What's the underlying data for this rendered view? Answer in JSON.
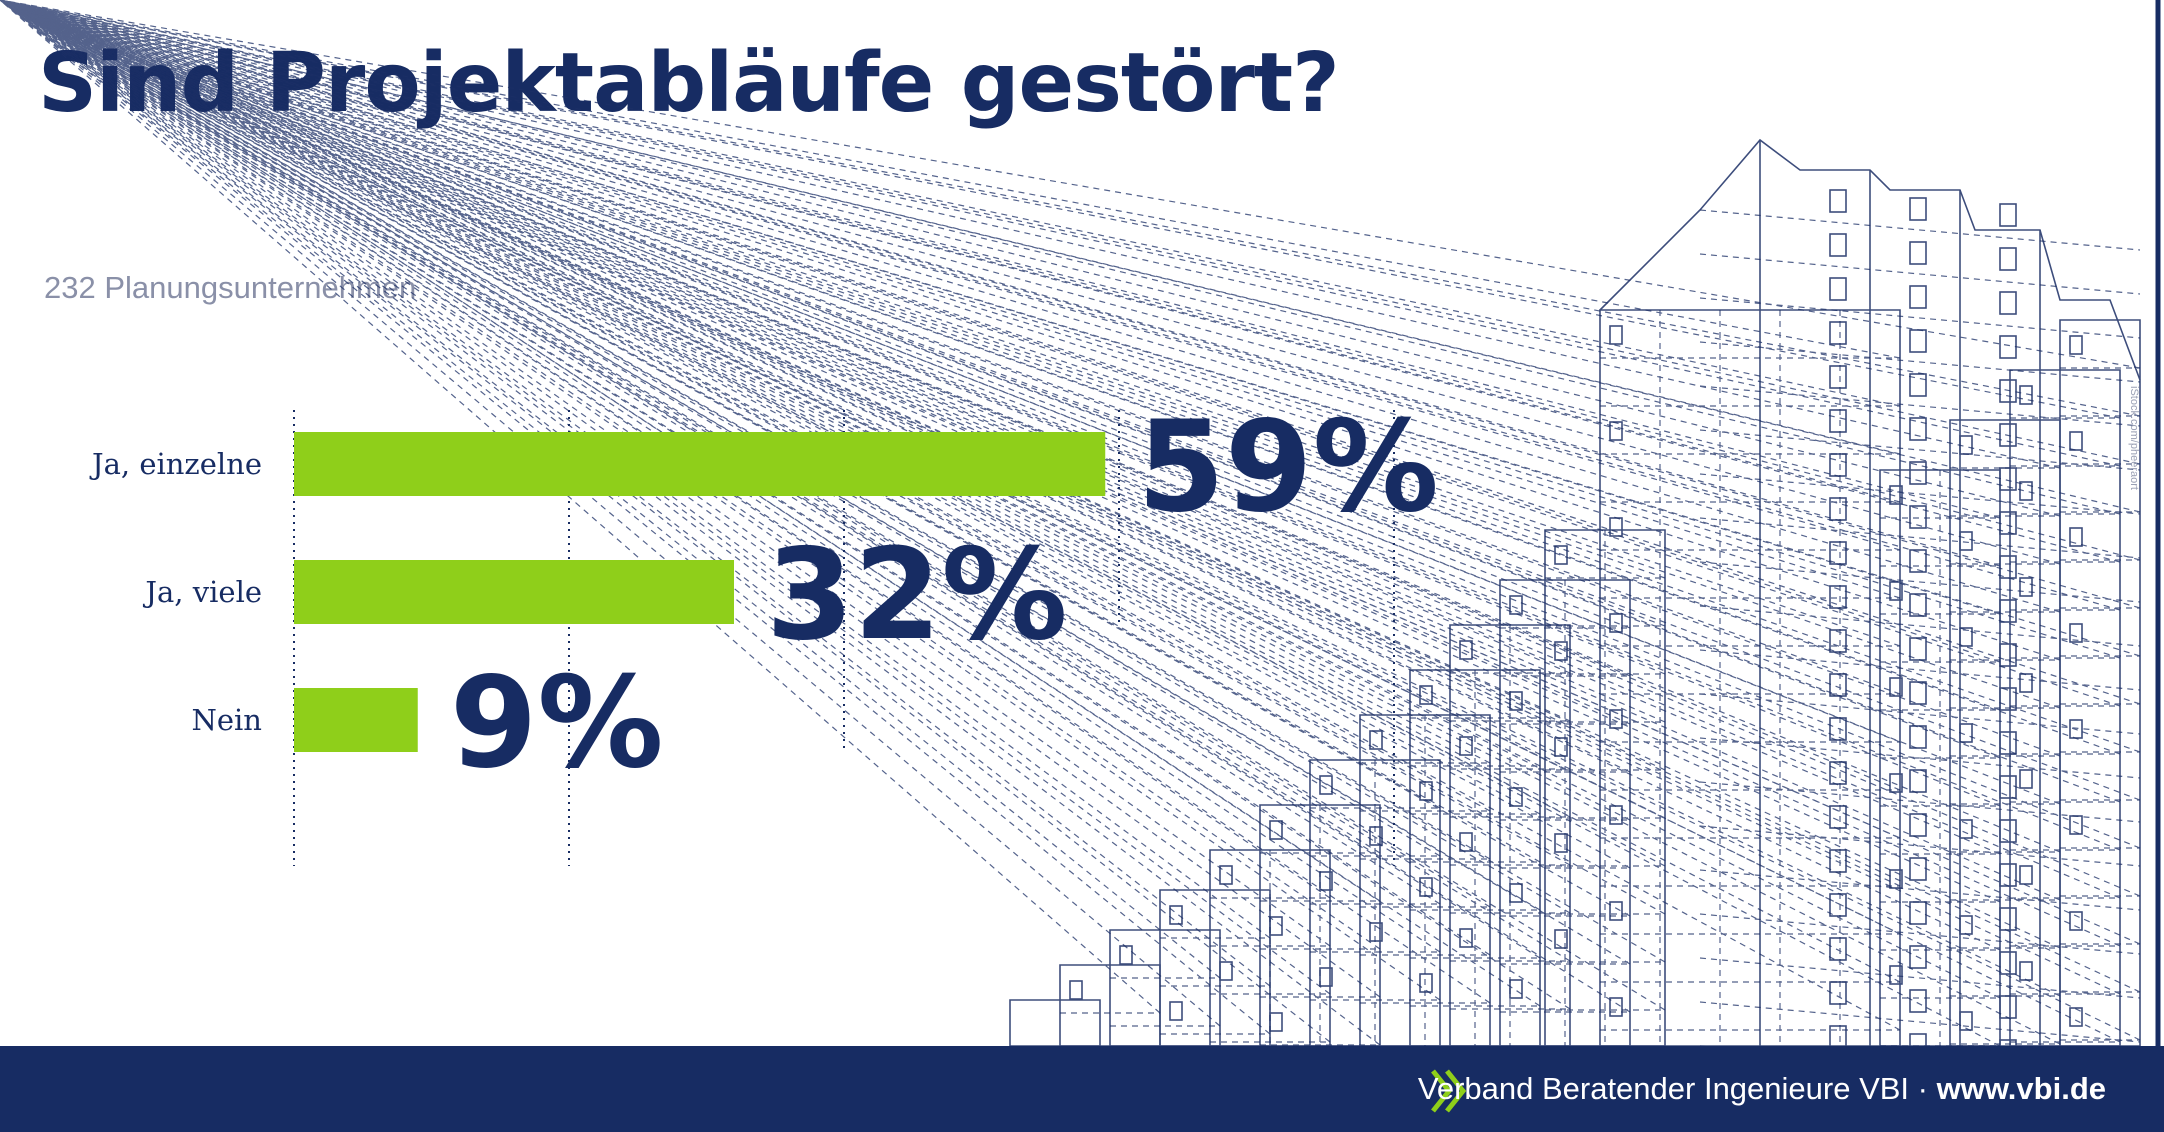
{
  "title": "Sind Projektabläufe gestört?",
  "subtitle": "232 Planungsunternehmen",
  "chart_data": {
    "type": "bar",
    "orientation": "horizontal",
    "title": "Sind Projektabläufe gestört?",
    "subtitle": "232 Planungsunternehmen",
    "categories": [
      "Ja, einzelne",
      "Ja, viele",
      "Nein"
    ],
    "values": [
      59,
      32,
      9
    ],
    "value_labels": [
      "59%",
      "32%",
      "9%"
    ],
    "xlim": [
      0,
      80
    ],
    "grid": "vertical dotted lines every 20",
    "legend": "none",
    "colors": {
      "bar": "#8fcf1a",
      "text": "#172c63"
    }
  },
  "footer": {
    "org": "Verband Beratender Ingenieure VBI · ",
    "url": "www.vbi.de",
    "chevron_icon": "double-chevron-right-icon",
    "colors": {
      "background": "#172c63",
      "accent": "#8fcf1a"
    }
  },
  "credit": "iStock.com/pheeraort",
  "colors": {
    "brand": "#172c63",
    "accent": "#8fcf1a",
    "subtitle": "#8a90a8"
  }
}
